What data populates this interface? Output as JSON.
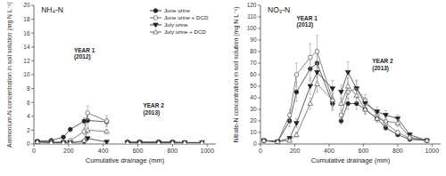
{
  "chart_data": [
    {
      "type": "line",
      "title": "NH₄-N",
      "x_label": "Cumulative drainage (mm)",
      "y_label": "Ammonium-N concentration in soil solution (mg N L⁻¹)",
      "annotations": [
        "YEAR 1\n(2012)",
        "YEAR 2\n(2013)"
      ],
      "xlim": [
        0,
        1050
      ],
      "xticks": [
        0,
        200,
        400,
        600,
        800,
        1000
      ],
      "ylim": [
        0,
        20
      ],
      "yticks": [
        0,
        2,
        4,
        6,
        8,
        10,
        12,
        14,
        16,
        18,
        20
      ],
      "grid": false,
      "legend": "upper right",
      "series": [
        {
          "name": "June urine",
          "color": "#222222",
          "marker": "filled-circle",
          "x": [
            20,
            100,
            170,
            210,
            290,
            310,
            420,
            null,
            540,
            610,
            720,
            800,
            870,
            970
          ],
          "values": [
            0.4,
            0.5,
            1.0,
            2.1,
            3.3,
            3.4,
            3.2,
            null,
            0.3,
            0.3,
            0.3,
            0.3,
            0.2,
            0.2
          ],
          "errors": [
            0.05,
            0.1,
            0.2,
            0.3,
            0.5,
            0.6,
            0.5,
            null,
            0.05,
            0.05,
            0.05,
            0.05,
            0.05,
            0.05
          ]
        },
        {
          "name": "June urine + DCD",
          "color": "#555555",
          "marker": "open-circle",
          "x": [
            20,
            100,
            170,
            210,
            290,
            310,
            420,
            null,
            540,
            610,
            720,
            800,
            870,
            970
          ],
          "values": [
            0.3,
            0.3,
            0.3,
            0.5,
            1.8,
            4.5,
            3.3,
            null,
            0.2,
            0.2,
            0.2,
            0.2,
            0.2,
            0.2
          ],
          "errors": [
            0.05,
            0.1,
            0.1,
            0.15,
            0.5,
            1.0,
            0.8,
            null,
            0.05,
            0.05,
            0.05,
            0.05,
            0.05,
            0.05
          ]
        },
        {
          "name": "July urine",
          "color": "#222222",
          "marker": "filled-triangle-down",
          "x": [
            20,
            100,
            170,
            210,
            290,
            310,
            420,
            null,
            540,
            610,
            720,
            800,
            870,
            970
          ],
          "values": [
            0.3,
            0.2,
            0.2,
            0.2,
            0.3,
            0.8,
            0.3,
            null,
            0.2,
            0.2,
            0.2,
            0.2,
            0.2,
            0.2
          ],
          "errors": [
            0.05,
            0.05,
            0.05,
            0.05,
            0.1,
            0.15,
            0.1,
            null,
            0.05,
            0.05,
            0.05,
            0.05,
            0.05,
            0.05
          ]
        },
        {
          "name": "July urine + DCD",
          "color": "#555555",
          "marker": "open-triangle-up",
          "x": [
            20,
            100,
            170,
            210,
            290,
            310,
            420,
            null,
            540,
            610,
            720,
            800,
            870,
            970
          ],
          "values": [
            0.3,
            0.2,
            0.2,
            0.2,
            0.5,
            2.0,
            1.8,
            null,
            0.2,
            0.2,
            0.2,
            0.2,
            0.2,
            0.2
          ],
          "errors": [
            0.05,
            0.05,
            0.05,
            0.05,
            0.2,
            0.5,
            0.3,
            null,
            0.05,
            0.05,
            0.05,
            0.05,
            0.05,
            0.05
          ]
        }
      ]
    },
    {
      "type": "line",
      "title": "NO₃-N",
      "x_label": "Cumulative drainage (mm)",
      "y_label": "Nitrate-N concentration in soil solution (mg N L⁻¹)",
      "annotations": [
        "YEAR 1\n(2012)",
        "YEAR 2\n(2013)"
      ],
      "xlim": [
        0,
        1050
      ],
      "xticks": [
        0,
        200,
        400,
        600,
        800,
        1000
      ],
      "ylim": [
        0,
        120
      ],
      "yticks": [
        0,
        10,
        20,
        30,
        40,
        50,
        60,
        70,
        80,
        90,
        100,
        110,
        120
      ],
      "grid": false,
      "series": [
        {
          "color": "#222222",
          "marker": "filled-circle",
          "x": [
            20,
            100,
            170,
            210,
            290,
            330,
            420,
            null,
            470,
            510,
            560,
            610,
            680,
            730,
            800,
            870,
            970
          ],
          "values": [
            3,
            2,
            20,
            45,
            65,
            70,
            35,
            null,
            20,
            35,
            35,
            30,
            22,
            14,
            8,
            4,
            3
          ],
          "errors": [
            0.5,
            0.5,
            5,
            8,
            10,
            12,
            6,
            null,
            3,
            5,
            5,
            4,
            3,
            2,
            1,
            1,
            0.5
          ]
        },
        {
          "color": "#555555",
          "marker": "open-circle",
          "x": [
            20,
            100,
            170,
            210,
            290,
            330,
            420,
            null,
            470,
            510,
            560,
            610,
            680,
            730,
            800,
            870,
            970
          ],
          "values": [
            3,
            2,
            25,
            60,
            75,
            80,
            38,
            null,
            25,
            45,
            48,
            38,
            25,
            18,
            10,
            5,
            3
          ],
          "errors": [
            0.5,
            0.5,
            5,
            10,
            12,
            14,
            8,
            null,
            4,
            6,
            7,
            5,
            4,
            3,
            2,
            1,
            0.5
          ]
        },
        {
          "color": "#222222",
          "marker": "filled-triangle-down",
          "x": [
            20,
            100,
            170,
            210,
            290,
            330,
            420,
            null,
            470,
            510,
            560,
            610,
            680,
            730,
            800,
            870,
            970
          ],
          "values": [
            3,
            2,
            5,
            18,
            50,
            62,
            48,
            null,
            45,
            62,
            48,
            35,
            28,
            25,
            22,
            8,
            3
          ],
          "errors": [
            0.5,
            0.5,
            1,
            4,
            7,
            8,
            7,
            null,
            6,
            9,
            7,
            5,
            4,
            4,
            3,
            2,
            0.5
          ]
        },
        {
          "color": "#555555",
          "marker": "open-triangle-up",
          "x": [
            20,
            100,
            170,
            210,
            290,
            330,
            420,
            null,
            470,
            510,
            560,
            610,
            680,
            730,
            800,
            870,
            970
          ],
          "values": [
            3,
            2,
            3,
            8,
            35,
            52,
            38,
            null,
            35,
            50,
            42,
            30,
            22,
            20,
            18,
            6,
            3
          ],
          "errors": [
            0.5,
            0.5,
            1,
            2,
            5,
            7,
            6,
            null,
            5,
            7,
            6,
            4,
            3,
            3,
            3,
            1,
            0.5
          ]
        }
      ]
    }
  ]
}
